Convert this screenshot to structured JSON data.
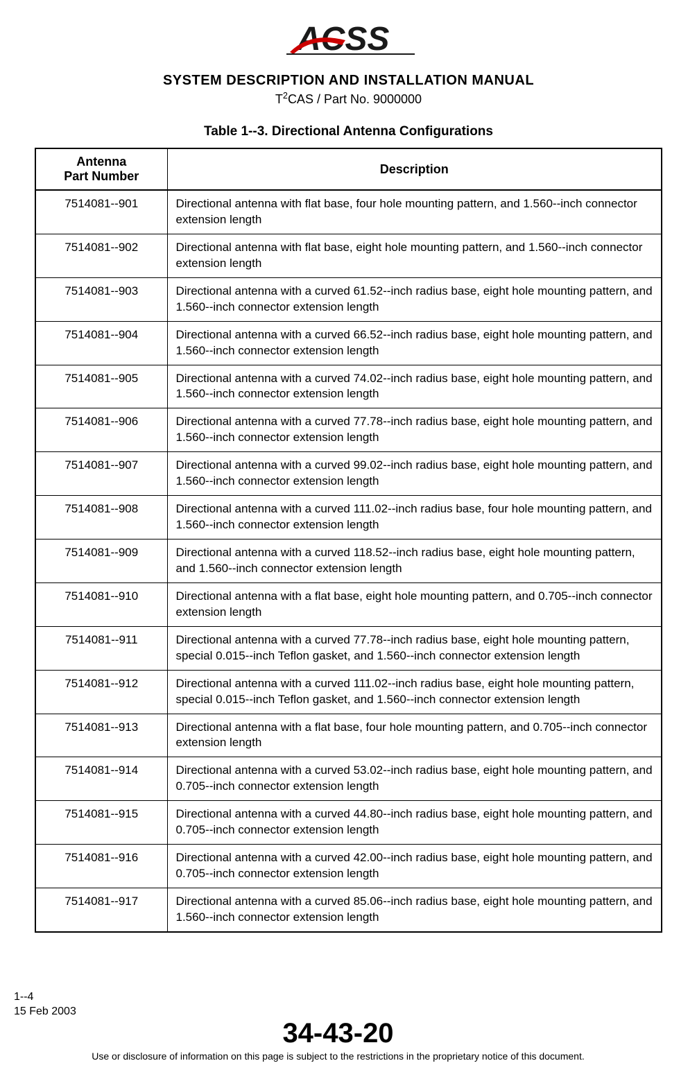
{
  "header": {
    "logo_text": "ACSS",
    "manual_title": "SYSTEM DESCRIPTION AND INSTALLATION MANUAL",
    "subtitle_prefix": "T",
    "subtitle_super": "2",
    "subtitle_suffix": "CAS / Part No. 9000000"
  },
  "table": {
    "caption": "Table 1--3.  Directional Antenna Configurations",
    "columns": [
      "Antenna\nPart Number",
      "Description"
    ],
    "rows": [
      [
        "7514081--901",
        "Directional antenna with flat base, four hole mounting pattern, and 1.560--inch connector extension length"
      ],
      [
        "7514081--902",
        "Directional antenna with flat base, eight hole mounting pattern, and 1.560--inch connector extension length"
      ],
      [
        "7514081--903",
        "Directional antenna with a curved 61.52--inch radius base, eight hole mounting pattern, and 1.560--inch connector extension length"
      ],
      [
        "7514081--904",
        "Directional antenna with a curved 66.52--inch radius base, eight hole mounting pattern, and 1.560--inch connector extension length"
      ],
      [
        "7514081--905",
        "Directional antenna with a curved 74.02--inch radius base, eight hole mounting pattern, and 1.560--inch connector extension length"
      ],
      [
        "7514081--906",
        "Directional antenna with a curved 77.78--inch radius base, eight hole mounting pattern, and 1.560--inch connector extension length"
      ],
      [
        "7514081--907",
        "Directional antenna with a curved 99.02--inch radius base, eight hole mounting pattern, and 1.560--inch connector extension length"
      ],
      [
        "7514081--908",
        "Directional antenna with a curved 111.02--inch radius base, four hole mounting pattern, and 1.560--inch connector extension length"
      ],
      [
        "7514081--909",
        "Directional antenna with a curved 118.52--inch radius base, eight hole mounting pattern, and 1.560--inch connector extension length"
      ],
      [
        "7514081--910",
        "Directional antenna with a flat base, eight hole mounting pattern, and 0.705--inch connector extension length"
      ],
      [
        "7514081--911",
        "Directional antenna with a curved 77.78--inch radius base, eight hole mounting pattern, special 0.015--inch Teflon gasket, and 1.560--inch connector extension length"
      ],
      [
        "7514081--912",
        "Directional antenna with a curved 111.02--inch radius base, eight hole mounting pattern, special 0.015--inch Teflon gasket, and 1.560--inch connector extension length"
      ],
      [
        "7514081--913",
        "Directional antenna with a flat base, four hole mounting pattern, and 0.705--inch connector extension length"
      ],
      [
        "7514081--914",
        "Directional antenna with a curved 53.02--inch radius base, eight hole mounting pattern, and 0.705--inch connector extension length"
      ],
      [
        "7514081--915",
        "Directional antenna with a curved 44.80--inch radius base, eight hole mounting pattern, and 0.705--inch connector extension length"
      ],
      [
        "7514081--916",
        "Directional antenna with a curved 42.00--inch radius base, eight hole mounting pattern, and 0.705--inch connector extension length"
      ],
      [
        "7514081--917",
        "Directional antenna with a curved 85.06--inch radius base, eight hole mounting pattern, and 1.560--inch connector extension length"
      ]
    ]
  },
  "footer": {
    "page_number": "1--4",
    "date": "15 Feb 2003",
    "section_number": "34-43-20",
    "notice": "Use or disclosure of information on this page is subject to the restrictions in the proprietary notice of this document."
  },
  "styling": {
    "background_color": "#ffffff",
    "text_color": "#000000",
    "border_color": "#000000",
    "logo_red": "#cc0000",
    "logo_dark": "#1a1a1a"
  }
}
